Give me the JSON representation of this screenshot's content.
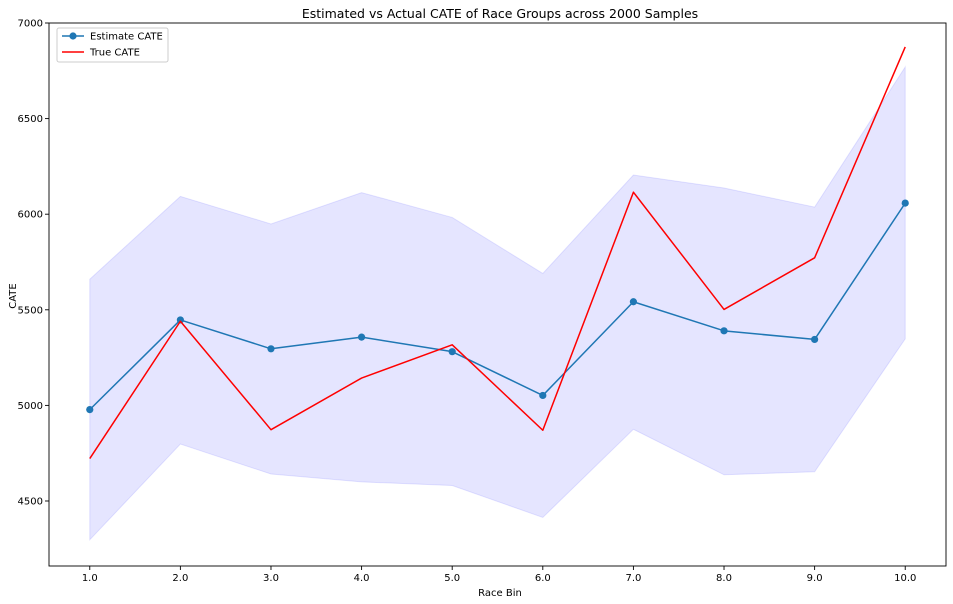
{
  "chart_data": {
    "type": "line",
    "title": "Estimated vs Actual CATE of Race Groups across 2000 Samples",
    "xlabel": "Race Bin",
    "ylabel": "CATE",
    "xlim": [
      0.55,
      10.45
    ],
    "ylim": [
      4160,
      7000
    ],
    "x": [
      1,
      2,
      3,
      4,
      5,
      6,
      7,
      8,
      9,
      10
    ],
    "x_tick_labels": [
      "1.0",
      "2.0",
      "3.0",
      "4.0",
      "5.0",
      "6.0",
      "7.0",
      "8.0",
      "9.0",
      "10.0"
    ],
    "y_ticks": [
      4500,
      5000,
      5500,
      6000,
      6500,
      7000
    ],
    "y_tick_labels": [
      "4500",
      "5000",
      "5500",
      "6000",
      "6500",
      "7000"
    ],
    "grid": false,
    "legend_position": "top-left",
    "series": [
      {
        "name": "Estimate CATE",
        "color": "#1f77b4",
        "marker": "circle",
        "values": [
          4978,
          5447,
          5296,
          5357,
          5281,
          5052,
          5542,
          5390,
          5345,
          6058
        ]
      },
      {
        "name": "True CATE",
        "color": "#ff0000",
        "marker": "none",
        "values": [
          4722,
          5440,
          4873,
          5143,
          5317,
          4870,
          6115,
          5502,
          5772,
          6875
        ]
      }
    ],
    "confidence_band": {
      "color": "#0000ff",
      "opacity": 0.1,
      "lower": [
        4297,
        4798,
        4641,
        4600,
        4581,
        4414,
        4875,
        4637,
        4653,
        5348
      ],
      "upper": [
        5660,
        6093,
        5949,
        6113,
        5983,
        5690,
        6205,
        6137,
        6037,
        6770
      ]
    }
  }
}
